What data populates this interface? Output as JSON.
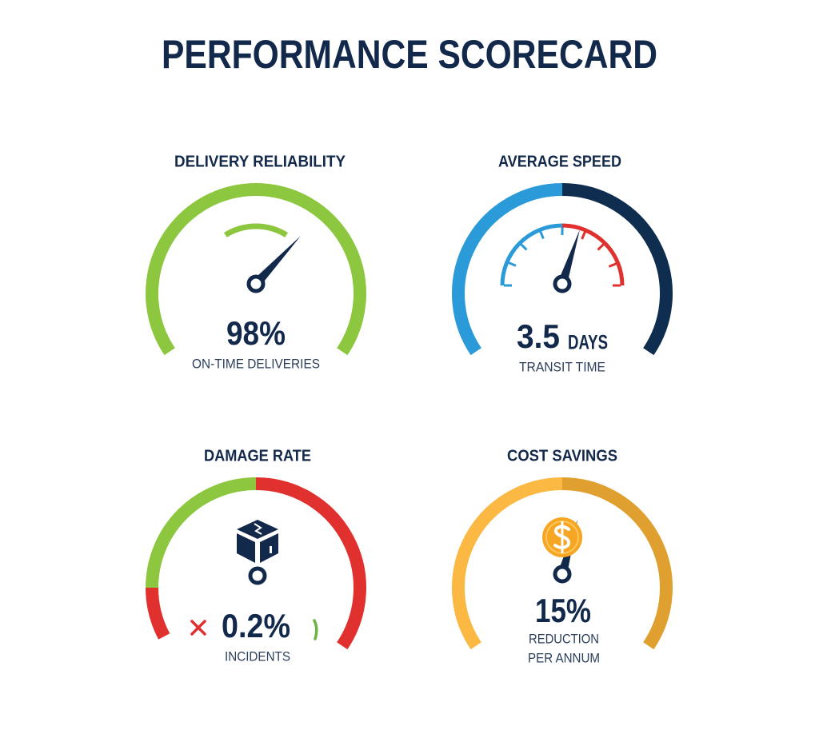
{
  "title": "PERFORMANCE SCORECARD",
  "gauges": [
    {
      "title": "DELIVERY RELIABILITY",
      "value": "98%",
      "caption_lines": [
        "ON-TIME DELIVERIES"
      ]
    },
    {
      "title": "AVERAGE SPEED",
      "value": "3.5",
      "unit": "DAYS",
      "caption_lines": [
        "TRANSIT TIME"
      ]
    },
    {
      "title": "DAMAGE RATE",
      "value": "0.2%",
      "caption_lines": [
        "INCIDENTS"
      ]
    },
    {
      "title": "COST SAVINGS",
      "value": "15%",
      "caption_lines": [
        "REDUCTION",
        "PER ANNUM"
      ]
    }
  ]
}
